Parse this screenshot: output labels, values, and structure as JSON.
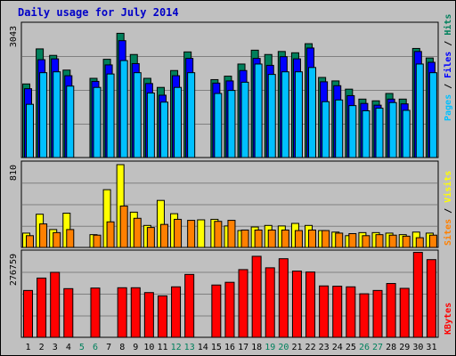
{
  "title": "Daily usage for July 2014",
  "colors": {
    "hits": "#00805c",
    "files": "#0000ff",
    "pages": "#00c0ff",
    "visits": "#ffff00",
    "sites": "#ff8000",
    "kbytes": "#ff0000",
    "weekend_day_label": "#00805c",
    "weekday_label": "#000000"
  },
  "legend": {
    "pages": "Pages",
    "files": "Files",
    "hits": "Hits",
    "sites": "Sites",
    "visits": "Visits",
    "kbytes": "KBytes",
    "sep": " / "
  },
  "chart_data": [
    {
      "type": "bar",
      "panel": "top",
      "ymax_label": "3043",
      "ylim": [
        0,
        3043
      ],
      "grid": true,
      "categories": [
        "1",
        "2",
        "3",
        "4",
        "5",
        "6",
        "7",
        "8",
        "9",
        "10",
        "11",
        "12",
        "13",
        "14",
        "15",
        "16",
        "17",
        "18",
        "19",
        "20",
        "21",
        "22",
        "23",
        "24",
        "25",
        "26",
        "27",
        "28",
        "29",
        "30",
        "31"
      ],
      "weekend_days": [
        "5",
        "6",
        "12",
        "13",
        "19",
        "20",
        "26",
        "27"
      ],
      "series": [
        {
          "name": "Hits",
          "values": [
            1700,
            2510,
            2360,
            2020,
            0,
            1830,
            2270,
            2870,
            2380,
            1830,
            1620,
            2010,
            2440,
            0,
            1800,
            1880,
            2160,
            2480,
            2380,
            2450,
            2420,
            2630,
            1850,
            1770,
            1580,
            1350,
            1310,
            1480,
            1350,
            2520,
            2300
          ]
        },
        {
          "name": "Files",
          "values": [
            1590,
            2260,
            2280,
            1890,
            0,
            1760,
            2140,
            2700,
            2170,
            1710,
            1440,
            1890,
            2290,
            0,
            1720,
            1770,
            2010,
            2290,
            2130,
            2330,
            2280,
            2530,
            1750,
            1660,
            1430,
            1250,
            1210,
            1350,
            1240,
            2450,
            2200
          ]
        },
        {
          "name": "Pages",
          "values": [
            1230,
            1960,
            1980,
            1650,
            0,
            1620,
            1930,
            2240,
            1960,
            1490,
            1280,
            1620,
            1960,
            0,
            1480,
            1550,
            1740,
            2160,
            1920,
            1980,
            1980,
            2080,
            1290,
            1330,
            1200,
            1080,
            1140,
            1270,
            1090,
            2160,
            1960
          ]
        }
      ]
    },
    {
      "type": "bar",
      "panel": "middle",
      "ymax_label": "810",
      "ylim": [
        0,
        810
      ],
      "grid": true,
      "categories": [
        "1",
        "2",
        "3",
        "4",
        "5",
        "6",
        "7",
        "8",
        "9",
        "10",
        "11",
        "12",
        "13",
        "14",
        "15",
        "16",
        "17",
        "18",
        "19",
        "20",
        "21",
        "22",
        "23",
        "24",
        "25",
        "26",
        "27",
        "28",
        "29",
        "30",
        "31"
      ],
      "series": [
        {
          "name": "Visits",
          "values": [
            140,
            325,
            175,
            335,
            0,
            125,
            565,
            810,
            345,
            215,
            460,
            330,
            0,
            270,
            275,
            210,
            165,
            200,
            215,
            210,
            235,
            215,
            165,
            150,
            115,
            145,
            145,
            140,
            125,
            150,
            140
          ]
        },
        {
          "name": "Sites",
          "values": [
            115,
            230,
            145,
            175,
            0,
            120,
            250,
            405,
            285,
            195,
            225,
            275,
            265,
            0,
            255,
            265,
            170,
            170,
            170,
            170,
            165,
            170,
            165,
            140,
            135,
            115,
            125,
            120,
            110,
            95,
            120
          ]
        }
      ]
    },
    {
      "type": "bar",
      "panel": "bottom",
      "ymax_label": "276759",
      "ylim": [
        0,
        276759
      ],
      "grid": true,
      "categories": [
        "1",
        "2",
        "3",
        "4",
        "5",
        "6",
        "7",
        "8",
        "9",
        "10",
        "11",
        "12",
        "13",
        "14",
        "15",
        "16",
        "17",
        "18",
        "19",
        "20",
        "21",
        "22",
        "23",
        "24",
        "25",
        "26",
        "27",
        "28",
        "29",
        "30",
        "31"
      ],
      "series": [
        {
          "name": "KBytes",
          "values": [
            155000,
            196000,
            215000,
            161000,
            0,
            163000,
            0,
            164000,
            164000,
            148000,
            137000,
            167000,
            208000,
            0,
            173000,
            182000,
            224000,
            268000,
            230000,
            260000,
            219000,
            216000,
            170000,
            169000,
            167000,
            144000,
            155000,
            178000,
            162000,
            281000,
            257000
          ]
        }
      ]
    }
  ]
}
